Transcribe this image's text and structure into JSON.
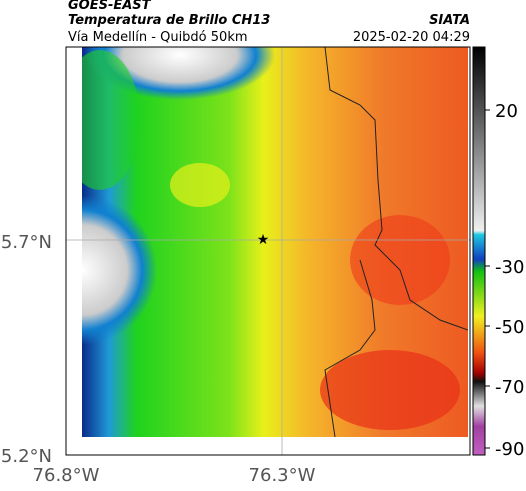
{
  "header": {
    "satellite": "GOES-EAST",
    "title": "Temperatura de Brillo CH13",
    "subtitle": "Vía Medellín - Quibdó 50km",
    "source": "SIATA",
    "datetime": "2025-02-20 04:29"
  },
  "axes": {
    "latitudes": [
      "5.7°N",
      "5.2°N"
    ],
    "longitudes": [
      "76.8°W",
      "76.3°W"
    ]
  },
  "colorbar": {
    "ticks": [
      "20",
      "-30",
      "-50",
      "-70",
      "-90"
    ]
  }
}
